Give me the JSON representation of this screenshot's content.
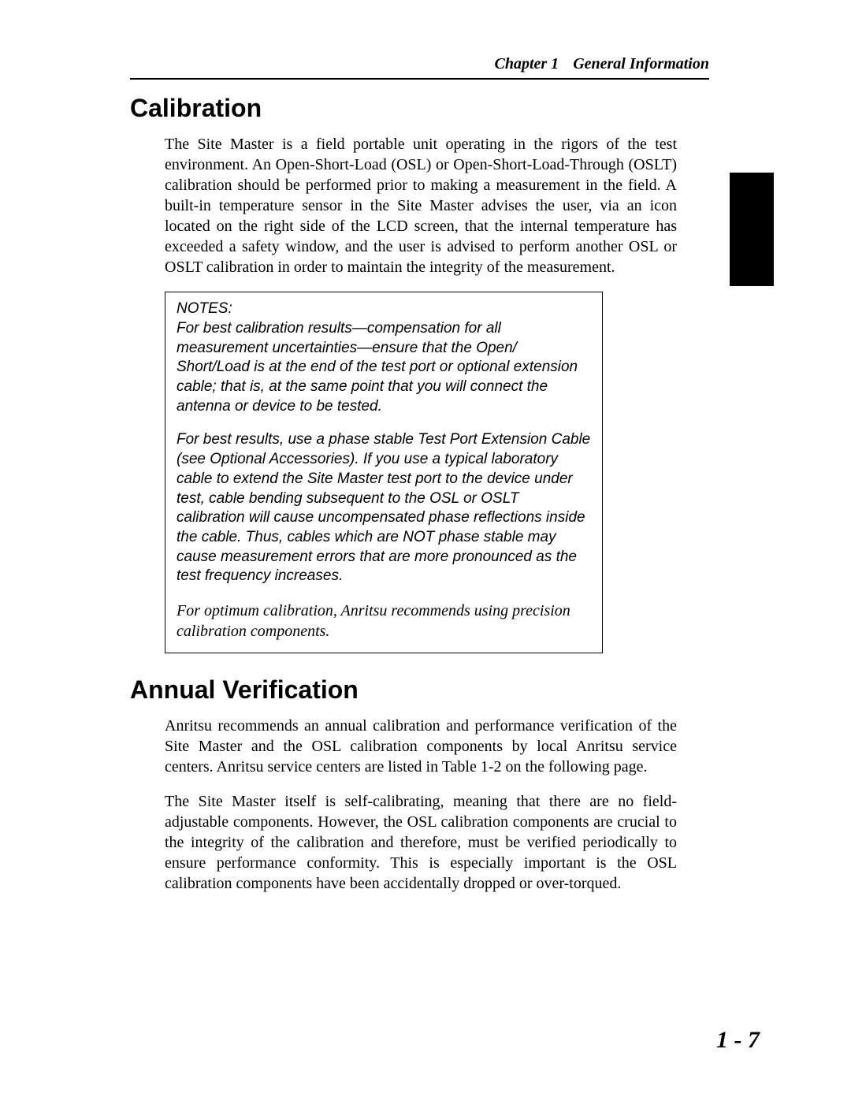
{
  "header": {
    "chapter_label": "Chapter 1",
    "chapter_title": "General Information"
  },
  "sections": {
    "calibration": {
      "heading": "Calibration",
      "para1": "The Site Master is a field portable unit operating in the rigors of the test environment. An Open-Short-Load (OSL) or Open-Short-Load-Through (OSLT) calibration should be performed prior to making a measurement in the field. A built-in temperature sensor in the Site Master advises the user, via an icon located on the right side of the LCD screen, that the internal temperature has exceeded a safety window, and the user is advised to perform another OSL or OSLT calibration in order to maintain the integrity of the measurement."
    },
    "notes": {
      "title": "NOTES:",
      "para1": "For best calibration results—compensation for all measurement uncertainties—ensure that the Open/ Short/Load is at the end of the test port or optional extension cable; that is, at the same point that you will connect the antenna or device to be tested.",
      "para2": "For best results, use a phase stable Test Port Extension Cable (see Optional Accessories). If you use a typical laboratory cable to extend the Site Master test port to the device under test, cable bending subsequent to the OSL or OSLT calibration will cause uncompensated phase reflections inside the cable. Thus, cables which are NOT phase stable may cause measurement errors that are more pronounced as the test frequency increases.",
      "para3": "For optimum calibration, Anritsu recommends using precision calibration components."
    },
    "annual": {
      "heading": "Annual Verification",
      "para1": "Anritsu recommends an annual calibration and performance verification of the Site Master and the OSL calibration components by local Anritsu service centers. Anritsu service centers are listed in Table 1-2 on the following page.",
      "para2": "The Site Master itself is self-calibrating, meaning that there are no field-adjustable components. However, the OSL calibration components are crucial to the integrity of the calibration and therefore, must be verified periodically to ensure performance conformity. This is especially important is the OSL calibration components have been accidentally dropped or over-torqued."
    }
  },
  "page_number": "1 - 7",
  "colors": {
    "text": "#000000",
    "background": "#ffffff",
    "tab": "#000000"
  },
  "typography": {
    "heading_family": "Arial",
    "body_family": "Times New Roman",
    "heading_size_pt": 24,
    "body_size_pt": 15,
    "notes_size_pt": 14,
    "page_num_size_pt": 22
  }
}
